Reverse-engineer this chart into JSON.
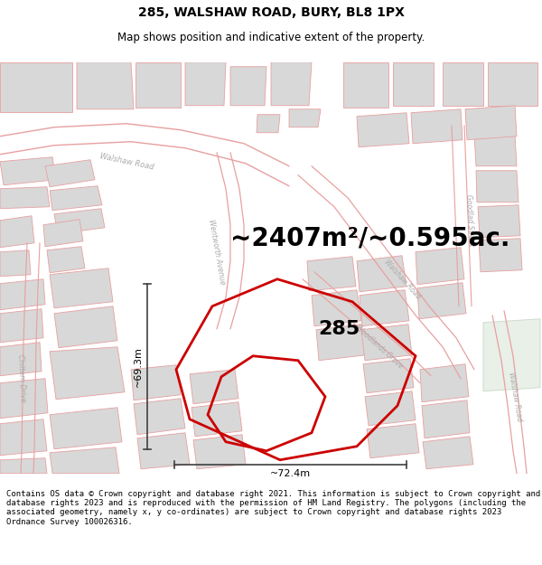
{
  "title_line1": "285, WALSHAW ROAD, BURY, BL8 1PX",
  "title_line2": "Map shows position and indicative extent of the property.",
  "area_text": "~2407m²/~0.595ac.",
  "label_285": "285",
  "dim_width": "~72.4m",
  "dim_height": "~69.3m",
  "footer_text": "Contains OS data © Crown copyright and database right 2021. This information is subject to Crown copyright and database rights 2023 and is reproduced with the permission of HM Land Registry. The polygons (including the associated geometry, namely x, y co-ordinates) are subject to Crown copyright and database rights 2023 Ordnance Survey 100026316.",
  "map_bg": "#ffffff",
  "road_color": "#e8a0a0",
  "building_fill": "#d8d8d8",
  "road_line_color": "#e8a0a0",
  "highlight_poly_color": "#cc0000",
  "title_fontsize": 10,
  "subtitle_fontsize": 8.5,
  "area_fontsize": 20,
  "label_fontsize": 16,
  "dim_fontsize": 8,
  "footer_fontsize": 6.5,
  "road_label_color": "#aaaaaa",
  "road_label_size": 6.0,
  "dim_line_color": "#404040"
}
